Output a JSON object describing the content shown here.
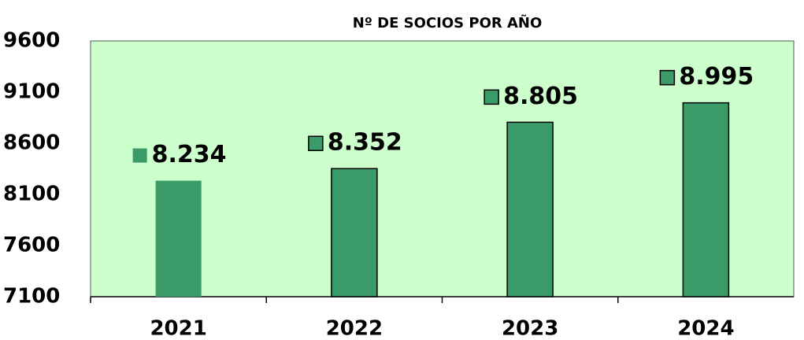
{
  "chart_data": {
    "type": "bar",
    "title": "Nº DE SOCIOS POR AÑO",
    "categories": [
      "2021",
      "2022",
      "2023",
      "2024"
    ],
    "values": [
      8234,
      8352,
      8805,
      8995
    ],
    "value_labels": [
      "8.234",
      "8.352",
      "8.805",
      "8.995"
    ],
    "color": "#3a9a68",
    "ylim": [
      7100,
      9600
    ],
    "yticks": [
      7100,
      7600,
      8100,
      8600,
      9100,
      9600
    ],
    "grid": false
  }
}
